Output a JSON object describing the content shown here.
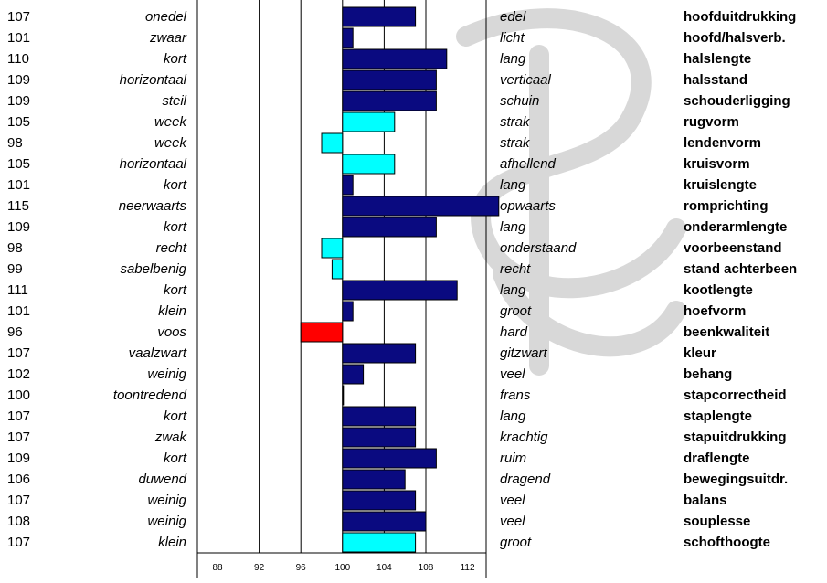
{
  "colors": {
    "dark": "#0a0a80",
    "light": "#00ffff",
    "red": "#ff0000",
    "border": "#000000"
  },
  "chart_data": {
    "type": "bar",
    "baseline": 100,
    "xlim": [
      88,
      113
    ],
    "xticks": [
      88,
      92,
      96,
      100,
      104,
      108,
      112
    ],
    "rows": [
      {
        "value": 107,
        "left": "onedel",
        "right": "edel",
        "trait": "hoofduitdrukking",
        "color": "dark"
      },
      {
        "value": 101,
        "left": "zwaar",
        "right": "licht",
        "trait": "hoofd/halsverb.",
        "color": "dark"
      },
      {
        "value": 110,
        "left": "kort",
        "right": "lang",
        "trait": "halslengte",
        "color": "dark"
      },
      {
        "value": 109,
        "left": "horizontaal",
        "right": "verticaal",
        "trait": "halsstand",
        "color": "dark"
      },
      {
        "value": 109,
        "left": "steil",
        "right": "schuin",
        "trait": "schouderligging",
        "color": "dark"
      },
      {
        "value": 105,
        "left": "week",
        "right": "strak",
        "trait": "rugvorm",
        "color": "light"
      },
      {
        "value": 98,
        "left": "week",
        "right": "strak",
        "trait": "lendenvorm",
        "color": "light"
      },
      {
        "value": 105,
        "left": "horizontaal",
        "right": "afhellend",
        "trait": "kruisvorm",
        "color": "light"
      },
      {
        "value": 101,
        "left": "kort",
        "right": "lang",
        "trait": "kruislengte",
        "color": "dark"
      },
      {
        "value": 115,
        "left": "neerwaarts",
        "right": "opwaarts",
        "trait": "romprichting",
        "color": "dark"
      },
      {
        "value": 109,
        "left": "kort",
        "right": "lang",
        "trait": "onderarmlengte",
        "color": "dark"
      },
      {
        "value": 98,
        "left": "recht",
        "right": "onderstaand",
        "trait": "voorbeenstand",
        "color": "light"
      },
      {
        "value": 99,
        "left": "sabelbenig",
        "right": "recht",
        "trait": "stand achterbeen",
        "color": "light"
      },
      {
        "value": 111,
        "left": "kort",
        "right": "lang",
        "trait": "kootlengte",
        "color": "dark"
      },
      {
        "value": 101,
        "left": "klein",
        "right": "groot",
        "trait": "hoefvorm",
        "color": "dark"
      },
      {
        "value": 96,
        "left": "voos",
        "right": "hard",
        "trait": "beenkwaliteit",
        "color": "red"
      },
      {
        "value": 107,
        "left": "vaalzwart",
        "right": "gitzwart",
        "trait": "kleur",
        "color": "dark"
      },
      {
        "value": 102,
        "left": "weinig",
        "right": "veel",
        "trait": "behang",
        "color": "dark"
      },
      {
        "value": 100,
        "left": "toontredend",
        "right": "frans",
        "trait": "stapcorrectheid",
        "color": "dark"
      },
      {
        "value": 107,
        "left": "kort",
        "right": "lang",
        "trait": "staplengte",
        "color": "dark"
      },
      {
        "value": 107,
        "left": "zwak",
        "right": "krachtig",
        "trait": "stapuitdrukking",
        "color": "dark"
      },
      {
        "value": 109,
        "left": "kort",
        "right": "ruim",
        "trait": "draflengte",
        "color": "dark"
      },
      {
        "value": 106,
        "left": "duwend",
        "right": "dragend",
        "trait": "bewegingsuitdr.",
        "color": "dark"
      },
      {
        "value": 107,
        "left": "weinig",
        "right": "veel",
        "trait": "balans",
        "color": "dark"
      },
      {
        "value": 108,
        "left": "weinig",
        "right": "veel",
        "trait": "souplesse",
        "color": "dark"
      },
      {
        "value": 107,
        "left": "klein",
        "right": "groot",
        "trait": "schofthoogte",
        "color": "light"
      }
    ]
  }
}
